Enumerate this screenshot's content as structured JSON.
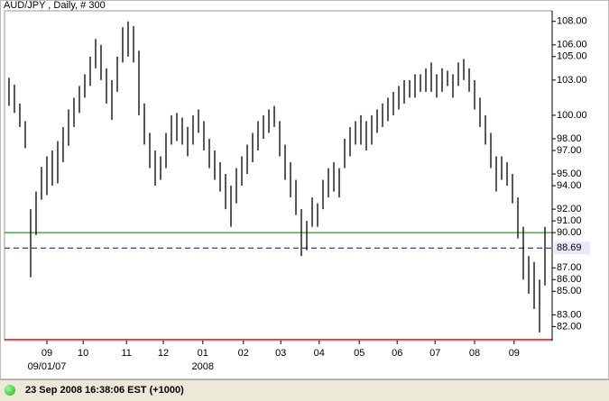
{
  "chart_data": {
    "type": "ohlc",
    "title": "AUD/JPY , Daily, # 300",
    "color": "#000000",
    "low": [
      100.8,
      100.2,
      99.0,
      97.2,
      86.2,
      89.8,
      92.8,
      93.2,
      94.0,
      94.2,
      96.0,
      97.4,
      99.0,
      100.2,
      101.5,
      102.5,
      104.0,
      103.0,
      101.0,
      99.6,
      102.0,
      104.5,
      105.0,
      104.5,
      100.0,
      97.5,
      95.5,
      94.0,
      94.5,
      95.5,
      97.5,
      97.8,
      97.5,
      96.5,
      97.5,
      98.5,
      97.0,
      95.5,
      94.5,
      93.5,
      92.0,
      90.5,
      92.5,
      94.0,
      95.0,
      96.0,
      97.0,
      98.0,
      98.5,
      99.0,
      96.5,
      94.5,
      93.0,
      91.5,
      88.0,
      88.5,
      90.5,
      90.5,
      92.0,
      93.0,
      93.5,
      93.0,
      95.5,
      96.5,
      97.5,
      97.5,
      97.0,
      97.5,
      98.5,
      99.0,
      99.5,
      100.0,
      100.5,
      101.0,
      101.5,
      101.5,
      102.0,
      102.0,
      102.0,
      101.5,
      102.0,
      102.5,
      101.5,
      102.5,
      103.0,
      102.0,
      100.5,
      99.0,
      97.5,
      95.5,
      93.5,
      94.5,
      94.0,
      92.5,
      89.5,
      86.0,
      84.8,
      83.5,
      81.5,
      85.5
    ],
    "high": [
      103.2,
      102.6,
      101.0,
      99.5,
      92.0,
      93.5,
      95.6,
      96.5,
      97.0,
      97.8,
      99.0,
      100.5,
      101.5,
      102.5,
      103.5,
      105.0,
      106.5,
      106.0,
      104.0,
      103.0,
      105.0,
      107.5,
      108.0,
      107.6,
      105.5,
      101.0,
      98.5,
      97.0,
      96.5,
      98.5,
      100.0,
      100.2,
      99.8,
      99.0,
      100.0,
      100.5,
      99.5,
      98.0,
      97.0,
      96.0,
      95.0,
      94.0,
      95.5,
      96.5,
      97.5,
      98.5,
      99.5,
      100.0,
      100.5,
      100.8,
      99.5,
      97.5,
      96.0,
      94.5,
      92.0,
      91.0,
      93.0,
      92.5,
      94.5,
      95.5,
      96.0,
      95.5,
      98.0,
      99.0,
      99.5,
      100.0,
      99.5,
      100.0,
      100.5,
      101.0,
      101.5,
      102.0,
      102.5,
      103.0,
      103.0,
      103.5,
      103.5,
      104.0,
      104.5,
      103.5,
      104.0,
      103.8,
      103.5,
      104.5,
      104.8,
      104.0,
      103.0,
      101.5,
      100.0,
      98.5,
      96.5,
      96.5,
      96.0,
      95.0,
      93.0,
      90.5,
      88.0,
      87.5,
      86.0,
      90.5
    ],
    "xlim": [
      -0.83,
      100.33
    ],
    "ylim": [
      80.8,
      108.9
    ],
    "yticks": [
      {
        "value": 108,
        "label": "108.00"
      },
      {
        "value": 106,
        "label": "106.00"
      },
      {
        "value": 105,
        "label": "105.00"
      },
      {
        "value": 103,
        "label": "103.00"
      },
      {
        "value": 100,
        "label": "100.00"
      },
      {
        "value": 98,
        "label": "98.00"
      },
      {
        "value": 97,
        "label": "97.00"
      },
      {
        "value": 95,
        "label": "95.00"
      },
      {
        "value": 94,
        "label": "94.00"
      },
      {
        "value": 92,
        "label": "92.00"
      },
      {
        "value": 91,
        "label": "91.00"
      },
      {
        "value": 90,
        "label": "90.00"
      },
      {
        "value": 87,
        "label": "87.00"
      },
      {
        "value": 86,
        "label": "86.00"
      },
      {
        "value": 85,
        "label": "85.00"
      },
      {
        "value": 83,
        "label": "83.00"
      },
      {
        "value": 82,
        "label": "82.00"
      }
    ],
    "xticks": [
      {
        "value": 7,
        "label": "09"
      },
      {
        "value": 13.7,
        "label": "10"
      },
      {
        "value": 21.7,
        "label": "11"
      },
      {
        "value": 28.5,
        "label": "12"
      },
      {
        "value": 35.8,
        "label": "01"
      },
      {
        "value": 43.3,
        "label": "02"
      },
      {
        "value": 50.2,
        "label": "03"
      },
      {
        "value": 57.3,
        "label": "04"
      },
      {
        "value": 64.7,
        "label": "05"
      },
      {
        "value": 71.7,
        "label": "06"
      },
      {
        "value": 78.7,
        "label": "07"
      },
      {
        "value": 86,
        "label": "08"
      },
      {
        "value": 93.3,
        "label": "09"
      }
    ],
    "xticks_secondary": [
      {
        "value": 7,
        "label": "09/01/07"
      },
      {
        "value": 35.8,
        "label": "2008"
      }
    ],
    "last_price": 88.69,
    "last_price_color": "#0000cc",
    "horizontal_lines": [
      {
        "value": 90,
        "color": "#008000"
      },
      {
        "value": 80.9,
        "color": "#a00000"
      }
    ]
  },
  "status_bar": {
    "text": "23 Sep 2008 16:38:06 EST (+1000)"
  }
}
